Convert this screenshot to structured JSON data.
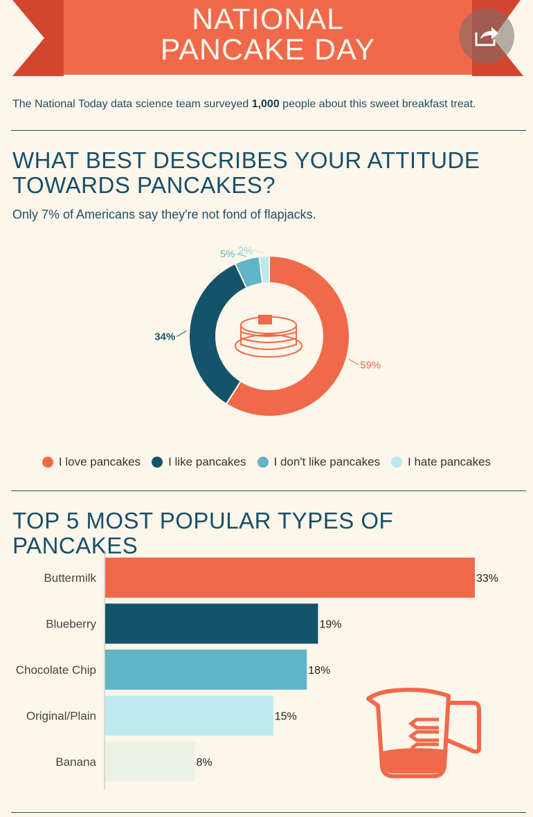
{
  "header": {
    "title_line1": "NATIONAL",
    "title_line2": "PANCAKE DAY",
    "share_icon": "share-icon"
  },
  "intro": {
    "before": "The National Today data science team surveyed ",
    "count": "1,000",
    "after": " people about this sweet breakfast treat."
  },
  "colors": {
    "coral": "#f0694a",
    "navy": "#14546a",
    "teal": "#62b4c8",
    "pale_cyan": "#bce9ee",
    "pale_gray": "#eef1e6",
    "heading": "#174f6a"
  },
  "chart_data": [
    {
      "type": "pie",
      "title": "WHAT BEST DESCRIBES YOUR ATTITUDE TOWARDS PANCAKES?",
      "subtitle": "Only 7% of Americans say they're not fond of flapjacks.",
      "center_icon": "pancake-stack-icon",
      "legend_position": "bottom",
      "slices": [
        {
          "label": "I love pancakes",
          "value": 59,
          "display": "59%",
          "color": "#f0694a"
        },
        {
          "label": "I like pancakes",
          "value": 34,
          "display": "34%",
          "color": "#14546a"
        },
        {
          "label": "I don't like pancakes",
          "value": 5,
          "display": "5%",
          "color": "#62b4c8"
        },
        {
          "label": "I hate pancakes",
          "value": 2,
          "display": "2%",
          "color": "#bce9ee"
        }
      ]
    },
    {
      "type": "bar",
      "orientation": "horizontal",
      "title": "TOP 5 MOST POPULAR TYPES OF PANCAKES",
      "xlim": [
        0,
        35
      ],
      "decoration_icon": "measuring-cup-icon",
      "bars": [
        {
          "category": "Buttermilk",
          "value": 33,
          "display": "33%",
          "color": "#f0694a"
        },
        {
          "category": "Blueberry",
          "value": 19,
          "display": "19%",
          "color": "#14546a"
        },
        {
          "category": "Chocolate Chip",
          "value": 18,
          "display": "18%",
          "color": "#62b4c8"
        },
        {
          "category": "Original/Plain",
          "value": 15,
          "display": "15%",
          "color": "#bce9ee"
        },
        {
          "category": "Banana",
          "value": 8,
          "display": "8%",
          "color": "#eef1e6"
        }
      ]
    }
  ]
}
